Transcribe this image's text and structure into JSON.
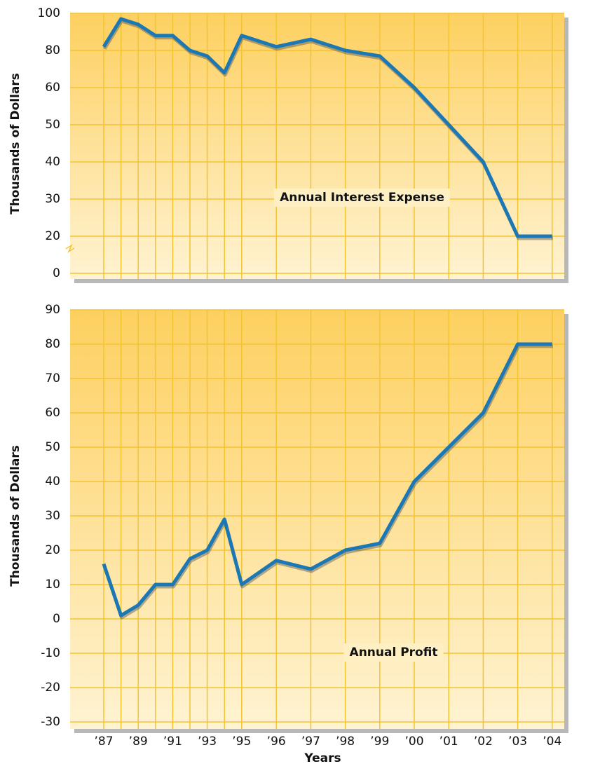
{
  "chart_data": [
    {
      "type": "line",
      "y_scale": "even-ticks",
      "ylabel": "Thousands of Dollars",
      "annotation": "Annual Interest Expense",
      "series": [
        {
          "color": "#1b78b4",
          "values": [
            82,
            97,
            94,
            88,
            88,
            80,
            77,
            68,
            88,
            82,
            86,
            80,
            77,
            60,
            50,
            40,
            20,
            20
          ]
        }
      ],
      "ylim": [
        0,
        100
      ],
      "yticks": [
        0,
        20,
        30,
        40,
        50,
        60,
        80,
        100
      ],
      "grid": true
    },
    {
      "type": "line",
      "y_scale": "linear",
      "ylabel": "Thousands of Dollars",
      "annotation": "Annual Profit",
      "xlabel": "Years",
      "categories": [
        "’87",
        null,
        "’89",
        null,
        "’91",
        null,
        "’93",
        null,
        "’95",
        "’96",
        "’97",
        "’98",
        "’99",
        "’00",
        "’01",
        "’02",
        "’03",
        "’04"
      ],
      "series": [
        {
          "color": "#1b78b4",
          "values": [
            16,
            1,
            4,
            10,
            10,
            17.5,
            20,
            29,
            10,
            17,
            14.5,
            20,
            22,
            40,
            50,
            60,
            80,
            80
          ]
        }
      ],
      "ylim": [
        -30,
        90
      ],
      "yticks": [
        -30,
        -20,
        -10,
        0,
        10,
        20,
        30,
        40,
        50,
        60,
        70,
        80,
        90
      ],
      "grid": true
    }
  ]
}
